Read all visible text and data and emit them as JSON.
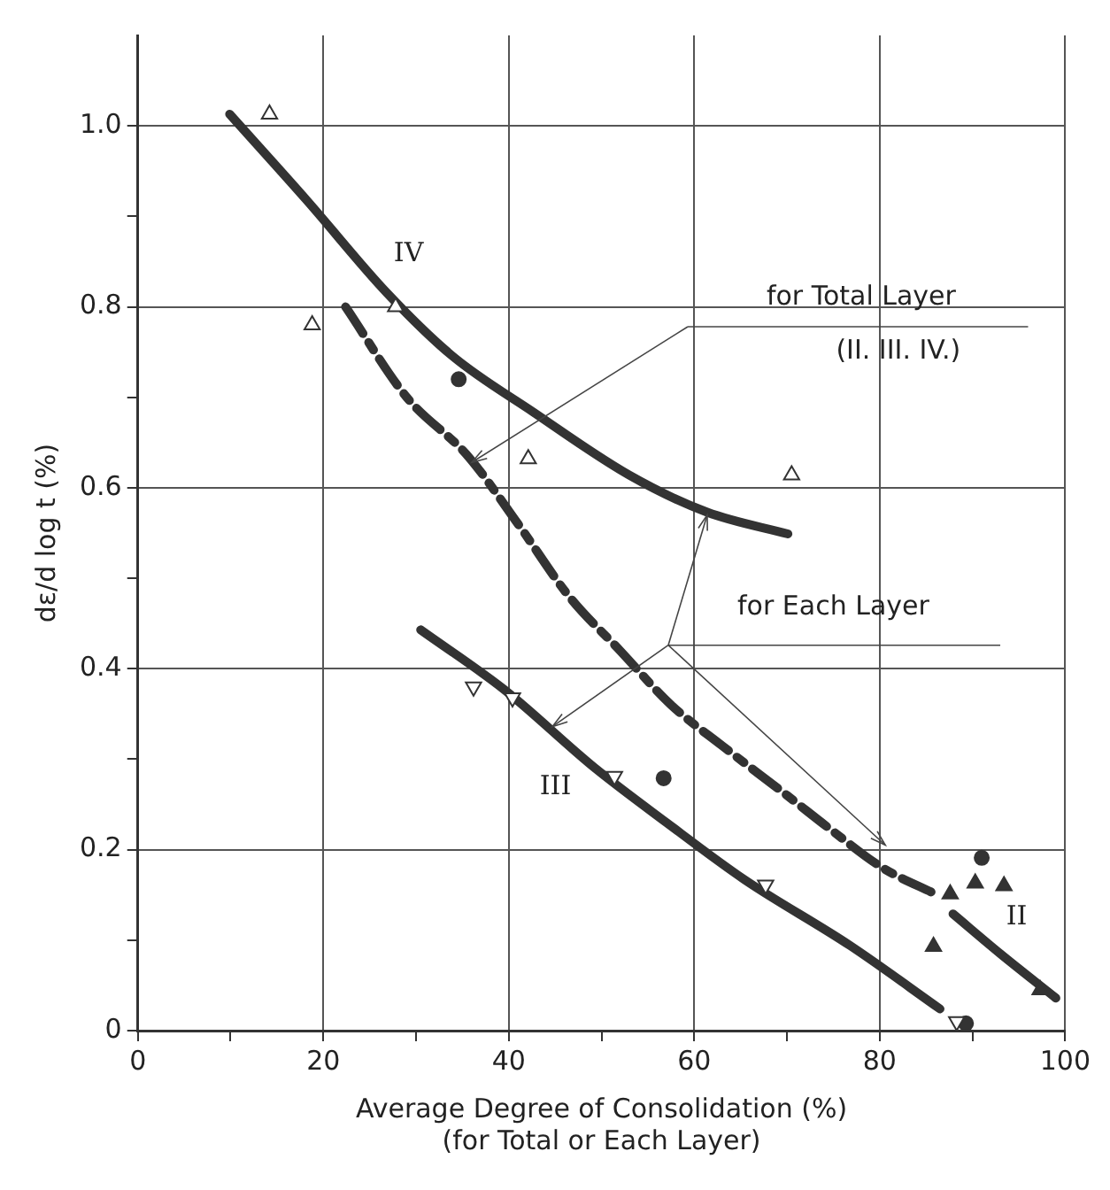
{
  "chart_data": {
    "type": "line",
    "xlabel": "Average Degree of Consolidation (%)\n(for Total or Each Layer)",
    "ylabel": "dε/d log t (%)",
    "xlim": [
      0,
      100
    ],
    "ylim": [
      0,
      1.1
    ],
    "xticks": [
      0,
      {
        "value": 10,
        "label": null
      },
      20,
      {
        "value": 30,
        "label": null
      },
      40,
      {
        "value": 50,
        "label": null
      },
      60,
      {
        "value": 70,
        "label": null
      },
      80,
      {
        "value": 90,
        "label": null
      },
      100
    ],
    "yticks": [
      0,
      {
        "value": 0.1,
        "label": null
      },
      0.2,
      {
        "value": 0.3,
        "label": null
      },
      0.4,
      {
        "value": 0.5,
        "label": null
      },
      0.6,
      {
        "value": 0.7,
        "label": null
      },
      0.8,
      {
        "value": 0.9,
        "label": null
      },
      {
        "value": 1,
        "label": "1.0"
      }
    ],
    "grid": true,
    "series": [
      {
        "name": "IV",
        "color": "#333333",
        "marker": "none",
        "line_style": "solid",
        "x": [
          9.9,
          18.2,
          26.9,
          34,
          42.6,
          53,
          61.4,
          70.1
        ],
        "values": [
          1.013,
          0.918,
          0.815,
          0.745,
          0.684,
          0.614,
          0.573,
          0.549
        ]
      },
      {
        "color": "#333333",
        "marker": "none",
        "line_style": "dashed",
        "x": [
          22.4,
          29,
          35.6,
          41,
          46.5,
          52,
          57.5,
          63,
          70,
          75,
          80.3,
          86.2
        ],
        "values": [
          0.8,
          0.7,
          0.635,
          0.56,
          0.48,
          0.42,
          0.36,
          0.315,
          0.26,
          0.22,
          0.18,
          0.15
        ]
      },
      {
        "name": "III",
        "color": "#333333",
        "marker": "none",
        "line_style": "solid",
        "x": [
          30.5,
          39.5,
          49.2,
          57,
          65.4,
          76.8,
          86.5
        ],
        "values": [
          0.443,
          0.377,
          0.291,
          0.23,
          0.167,
          0.094,
          0.024
        ]
      },
      {
        "name": "II",
        "color": "#333333",
        "marker": "none",
        "line_style": "solid",
        "x": [
          87.9,
          93,
          99
        ],
        "values": [
          0.129,
          0.085,
          0.036
        ]
      },
      {
        "type": "scatter",
        "color": "#333333",
        "marker": "triangle",
        "x": [
          14.2,
          18.8,
          27.8,
          42.1,
          70.5
        ],
        "values": [
          1.013,
          0.78,
          0.8,
          0.632,
          0.614
        ]
      },
      {
        "type": "scatter",
        "color": "#333333",
        "marker": "triangle-down",
        "x": [
          36.2,
          40.4,
          51.4,
          67.7,
          88.3
        ],
        "values": [
          0.38,
          0.368,
          0.281,
          0.161,
          0.01
        ]
      },
      {
        "type": "scatter",
        "color": "#333333",
        "marker": "circle",
        "x": [
          34.6,
          56.7,
          91,
          89.3
        ],
        "values": [
          0.72,
          0.279,
          0.191,
          0.008
        ]
      },
      {
        "type": "scatter",
        "color": "#333333",
        "marker": "triangle-filled",
        "x": [
          85.8,
          87.6,
          90.3,
          93.4,
          97.3
        ],
        "values": [
          0.093,
          0.151,
          0.163,
          0.16,
          0.045
        ]
      }
    ],
    "annotations": [
      "for Total Layer",
      "(II. III. IV.)",
      "for Each Layer"
    ]
  }
}
